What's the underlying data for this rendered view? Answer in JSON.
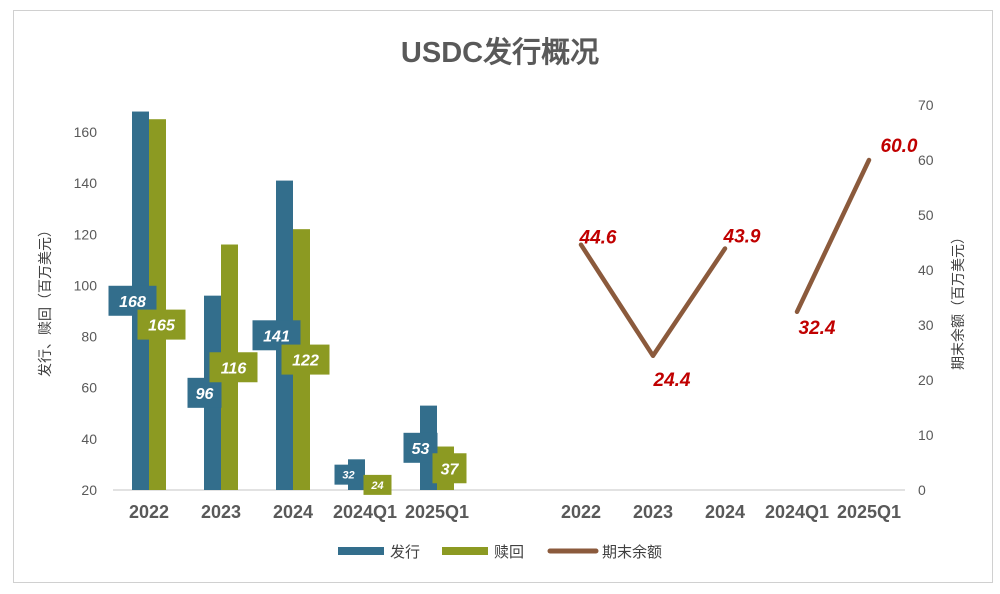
{
  "chart_data": [
    {
      "type": "bar",
      "title": "USDC发行概况",
      "ylabel": "发行、赎回（百万美元）",
      "ylim": [
        20,
        170
      ],
      "yticks": [
        20,
        40,
        60,
        80,
        100,
        120,
        140,
        160
      ],
      "categories": [
        "2022",
        "2023",
        "2024",
        "2024Q1",
        "2025Q1"
      ],
      "series": [
        {
          "name": "发行",
          "color": "#336e8c",
          "values": [
            168,
            96,
            141,
            32,
            53
          ]
        },
        {
          "name": "赎回",
          "color": "#8c9a22",
          "values": [
            165,
            116,
            122,
            24,
            37
          ]
        }
      ],
      "grid": false
    },
    {
      "type": "line",
      "ylabel": "期末余额（百万美元）",
      "ylim": [
        0,
        70
      ],
      "yticks": [
        0,
        10,
        20,
        30,
        40,
        50,
        60,
        70
      ],
      "categories": [
        "2022",
        "2023",
        "2024",
        "2024Q1",
        "2025Q1"
      ],
      "series": [
        {
          "name": "期末余额",
          "color": "#8b5a3c",
          "values": [
            44.6,
            24.4,
            43.9,
            32.4,
            60.0
          ],
          "labels": [
            "44.6",
            "24.4",
            "43.9",
            "32.4",
            "60.0"
          ],
          "segments": [
            [
              0,
              2
            ],
            [
              3,
              4
            ]
          ]
        }
      ],
      "label_color": "#c00000",
      "grid": false
    }
  ],
  "legend": {
    "position": "bottom",
    "items": [
      "发行",
      "赎回",
      "期末余额"
    ]
  }
}
